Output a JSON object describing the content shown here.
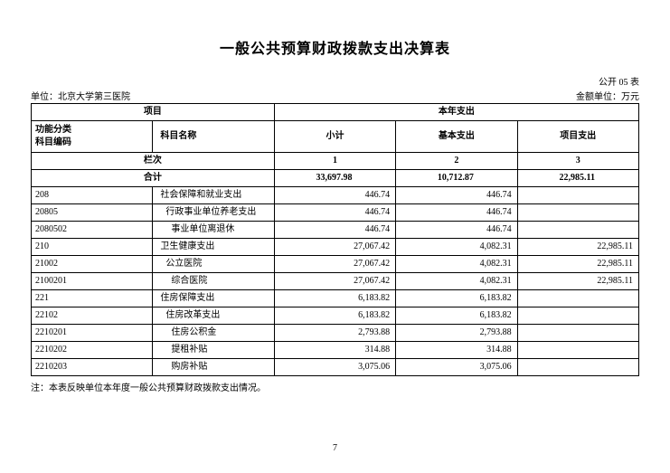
{
  "title": "一般公共预算财政拨款支出决算表",
  "form_code": "公开 05 表",
  "unit_label": "单位：北京大学第三医院",
  "amount_unit": "金额单位：万元",
  "header": {
    "project": "项目",
    "this_year_expense": "本年支出",
    "func_code": "功能分类\n科目编码",
    "subject_name": "科目名称",
    "subtotal": "小计",
    "basic_expense": "基本支出",
    "project_expense": "项目支出",
    "lanci": "栏次",
    "col1": "1",
    "col2": "2",
    "col3": "3",
    "total": "合计"
  },
  "totals": {
    "subtotal": "33,697.98",
    "basic": "10,712.87",
    "project": "22,985.11"
  },
  "rows": [
    {
      "code": "208",
      "name": "社会保障和就业支出",
      "indent": 0,
      "subtotal": "446.74",
      "basic": "446.74",
      "project": ""
    },
    {
      "code": "20805",
      "name": "行政事业单位养老支出",
      "indent": 1,
      "subtotal": "446.74",
      "basic": "446.74",
      "project": ""
    },
    {
      "code": "2080502",
      "name": "事业单位离退休",
      "indent": 2,
      "subtotal": "446.74",
      "basic": "446.74",
      "project": ""
    },
    {
      "code": "210",
      "name": "卫生健康支出",
      "indent": 0,
      "subtotal": "27,067.42",
      "basic": "4,082.31",
      "project": "22,985.11"
    },
    {
      "code": "21002",
      "name": "公立医院",
      "indent": 1,
      "subtotal": "27,067.42",
      "basic": "4,082.31",
      "project": "22,985.11"
    },
    {
      "code": "2100201",
      "name": "综合医院",
      "indent": 2,
      "subtotal": "27,067.42",
      "basic": "4,082.31",
      "project": "22,985.11"
    },
    {
      "code": "221",
      "name": "住房保障支出",
      "indent": 0,
      "subtotal": "6,183.82",
      "basic": "6,183.82",
      "project": ""
    },
    {
      "code": "22102",
      "name": "住房改革支出",
      "indent": 1,
      "subtotal": "6,183.82",
      "basic": "6,183.82",
      "project": ""
    },
    {
      "code": "2210201",
      "name": "住房公积金",
      "indent": 2,
      "subtotal": "2,793.88",
      "basic": "2,793.88",
      "project": ""
    },
    {
      "code": "2210202",
      "name": "提租补贴",
      "indent": 2,
      "subtotal": "314.88",
      "basic": "314.88",
      "project": ""
    },
    {
      "code": "2210203",
      "name": "购房补贴",
      "indent": 2,
      "subtotal": "3,075.06",
      "basic": "3,075.06",
      "project": ""
    }
  ],
  "footnote": "注：本表反映单位本年度一般公共预算财政拨款支出情况。",
  "page_number": "7"
}
